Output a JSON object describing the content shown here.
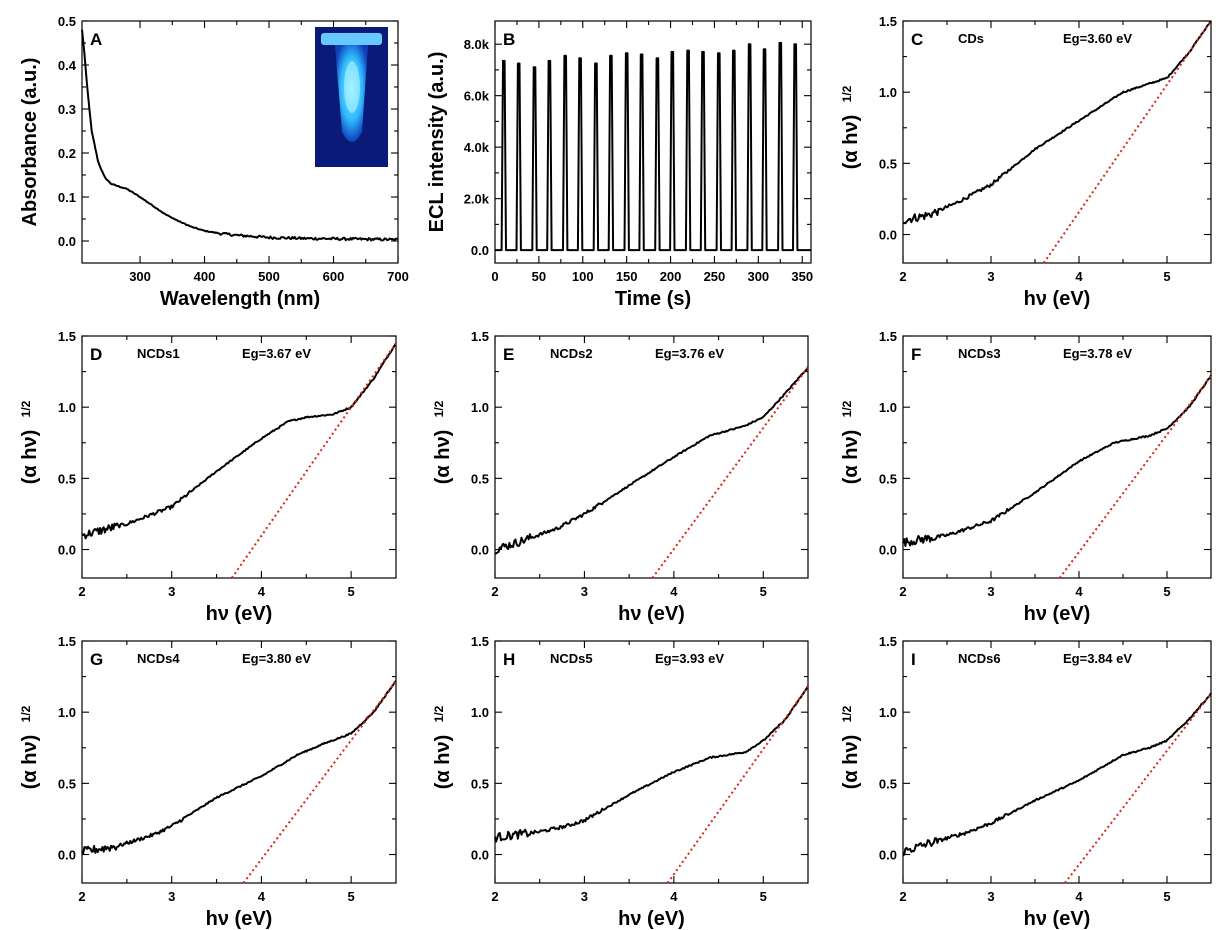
{
  "chart_data": [
    {
      "id": "A",
      "type": "line",
      "letter": "A",
      "xlabel": "Wavelength (nm)",
      "ylabel": "Absorbance (a.u.)",
      "xlim": [
        210,
        700
      ],
      "ylim": [
        -0.05,
        0.5
      ],
      "xticks": [
        300,
        400,
        500,
        600,
        700
      ],
      "xtick_labels": [
        "300",
        "400",
        "500",
        "600",
        "700"
      ],
      "yticks": [
        0,
        0.1,
        0.2,
        0.3,
        0.4,
        0.5
      ],
      "ytick_labels": [
        "0.0",
        "0.1",
        "0.2",
        "0.3",
        "0.4",
        "0.5"
      ],
      "series": [
        {
          "x": [
            210,
            213,
            218,
            225,
            235,
            245,
            255,
            265,
            280,
            300,
            320,
            340,
            360,
            380,
            400,
            425,
            450,
            500,
            550,
            600,
            650,
            700
          ],
          "y": [
            0.48,
            0.44,
            0.35,
            0.25,
            0.18,
            0.145,
            0.13,
            0.125,
            0.118,
            0.1,
            0.08,
            0.06,
            0.045,
            0.032,
            0.023,
            0.017,
            0.013,
            0.008,
            0.006,
            0.005,
            0.004,
            0.003
          ]
        }
      ],
      "inset": "photo of a centrifuge tube with blue fluorescence under UV light"
    },
    {
      "id": "B",
      "type": "line",
      "letter": "B",
      "xlabel": "Time (s)",
      "ylabel": "ECL intensity (a.u.)",
      "xlim": [
        0,
        360
      ],
      "ylim": [
        -500,
        8900
      ],
      "xticks": [
        0,
        50,
        100,
        150,
        200,
        250,
        300,
        350
      ],
      "xtick_labels": [
        "0",
        "50",
        "100",
        "150",
        "200",
        "250",
        "300",
        "350"
      ],
      "yticks": [
        0,
        2000,
        4000,
        6000,
        8000
      ],
      "ytick_labels": [
        "0.0",
        "2.0k",
        "4.0k",
        "6.0k",
        "8.0k"
      ],
      "peaks": {
        "x": [
          10,
          27,
          45,
          62,
          80,
          97,
          115,
          132,
          150,
          167,
          185,
          202,
          220,
          237,
          255,
          272,
          290,
          307,
          325,
          342
        ],
        "y": [
          7350,
          7250,
          7100,
          7350,
          7550,
          7450,
          7250,
          7550,
          7650,
          7600,
          7450,
          7700,
          7750,
          7700,
          7650,
          7750,
          8000,
          7800,
          8050,
          8000
        ]
      }
    },
    {
      "id": "C",
      "type": "line",
      "letter": "C",
      "sample": "CDs",
      "eg": "Eg=3.60 eV",
      "xlabel": "hν (eV)",
      "ylabel": "(α hν)",
      "xlim": [
        2,
        5.5
      ],
      "ylim": [
        -0.2,
        1.5
      ],
      "xticks": [
        2,
        3,
        4,
        5
      ],
      "xtick_labels": [
        "2",
        "3",
        "4",
        "5"
      ],
      "yticks": [
        0,
        0.5,
        1.0,
        1.5
      ],
      "ytick_labels": [
        "0.0",
        "0.5",
        "1.0",
        "1.5"
      ],
      "series": [
        {
          "x": [
            2,
            2.3,
            2.6,
            3.0,
            3.5,
            4.0,
            4.5,
            5.0,
            5.25,
            5.5
          ],
          "y": [
            0.1,
            0.14,
            0.22,
            0.35,
            0.6,
            0.8,
            1.0,
            1.1,
            1.28,
            1.5
          ]
        }
      ],
      "fit": {
        "x": [
          3.6,
          5.5
        ],
        "y": [
          -0.2,
          1.5
        ]
      }
    },
    {
      "id": "D",
      "type": "line",
      "letter": "D",
      "sample": "NCDs1",
      "eg": "Eg=3.67 eV",
      "xlabel": "hν (eV)",
      "ylabel": "(α hν)",
      "xlim": [
        2,
        5.5
      ],
      "ylim": [
        -0.2,
        1.5
      ],
      "xticks": [
        2,
        3,
        4,
        5
      ],
      "xtick_labels": [
        "2",
        "3",
        "4",
        "5"
      ],
      "yticks": [
        0,
        0.5,
        1.0,
        1.5
      ],
      "ytick_labels": [
        "0.0",
        "0.5",
        "1.0",
        "1.5"
      ],
      "series": [
        {
          "x": [
            2,
            2.5,
            3.0,
            3.5,
            4.0,
            4.3,
            4.5,
            4.8,
            5.0,
            5.25,
            5.5
          ],
          "y": [
            0.1,
            0.18,
            0.3,
            0.55,
            0.78,
            0.9,
            0.93,
            0.95,
            1.0,
            1.2,
            1.45
          ]
        }
      ],
      "fit": {
        "x": [
          3.67,
          5.5
        ],
        "y": [
          -0.2,
          1.45
        ]
      }
    },
    {
      "id": "E",
      "type": "line",
      "letter": "E",
      "sample": "NCDs2",
      "eg": "Eg=3.76 eV",
      "xlabel": "hν (eV)",
      "ylabel": "(α hν)",
      "xlim": [
        2,
        5.5
      ],
      "ylim": [
        -0.2,
        1.5
      ],
      "xticks": [
        2,
        3,
        4,
        5
      ],
      "xtick_labels": [
        "2",
        "3",
        "4",
        "5"
      ],
      "yticks": [
        0,
        0.5,
        1.0,
        1.5
      ],
      "ytick_labels": [
        "0.0",
        "0.5",
        "1.0",
        "1.5"
      ],
      "series": [
        {
          "x": [
            2,
            2.3,
            2.7,
            3.0,
            3.5,
            4.0,
            4.4,
            4.8,
            5.0,
            5.25,
            5.5
          ],
          "y": [
            0.0,
            0.06,
            0.15,
            0.25,
            0.45,
            0.65,
            0.8,
            0.87,
            0.93,
            1.1,
            1.28
          ]
        }
      ],
      "fit": {
        "x": [
          3.76,
          5.5
        ],
        "y": [
          -0.2,
          1.28
        ]
      }
    },
    {
      "id": "F",
      "type": "line",
      "letter": "F",
      "sample": "NCDs3",
      "eg": "Eg=3.78 eV",
      "xlabel": "hν (eV)",
      "ylabel": "(α hν)",
      "xlim": [
        2,
        5.5
      ],
      "ylim": [
        -0.2,
        1.5
      ],
      "xticks": [
        2,
        3,
        4,
        5
      ],
      "xtick_labels": [
        "2",
        "3",
        "4",
        "5"
      ],
      "yticks": [
        0,
        0.5,
        1.0,
        1.5
      ],
      "ytick_labels": [
        "0.0",
        "0.5",
        "1.0",
        "1.5"
      ],
      "series": [
        {
          "x": [
            2,
            2.5,
            3.0,
            3.5,
            4.0,
            4.4,
            4.8,
            5.0,
            5.25,
            5.5
          ],
          "y": [
            0.05,
            0.1,
            0.2,
            0.4,
            0.62,
            0.75,
            0.8,
            0.85,
            1.0,
            1.22
          ]
        }
      ],
      "fit": {
        "x": [
          3.78,
          5.5
        ],
        "y": [
          -0.2,
          1.22
        ]
      }
    },
    {
      "id": "G",
      "type": "line",
      "letter": "G",
      "sample": "NCDs4",
      "eg": "Eg=3.80 eV",
      "xlabel": "hν (eV)",
      "ylabel": "(α hν)",
      "xlim": [
        2,
        5.5
      ],
      "ylim": [
        -0.2,
        1.5
      ],
      "xticks": [
        2,
        3,
        4,
        5
      ],
      "xtick_labels": [
        "2",
        "3",
        "4",
        "5"
      ],
      "yticks": [
        0,
        0.5,
        1.0,
        1.5
      ],
      "ytick_labels": [
        "0.0",
        "0.5",
        "1.0",
        "1.5"
      ],
      "series": [
        {
          "x": [
            2,
            2.4,
            2.8,
            3.0,
            3.5,
            4.0,
            4.4,
            4.7,
            5.0,
            5.25,
            5.5
          ],
          "y": [
            0.02,
            0.06,
            0.14,
            0.2,
            0.4,
            0.55,
            0.7,
            0.78,
            0.85,
            1.0,
            1.22
          ]
        }
      ],
      "fit": {
        "x": [
          3.8,
          5.5
        ],
        "y": [
          -0.2,
          1.22
        ]
      }
    },
    {
      "id": "H",
      "type": "line",
      "letter": "H",
      "sample": "NCDs5",
      "eg": "Eg=3.93 eV",
      "xlabel": "hν (eV)",
      "ylabel": "(α hν)",
      "xlim": [
        2,
        5.5
      ],
      "ylim": [
        -0.2,
        1.5
      ],
      "xticks": [
        2,
        3,
        4,
        5
      ],
      "xtick_labels": [
        "2",
        "3",
        "4",
        "5"
      ],
      "yticks": [
        0,
        0.5,
        1.0,
        1.5
      ],
      "ytick_labels": [
        "0.0",
        "0.5",
        "1.0",
        "1.5"
      ],
      "series": [
        {
          "x": [
            2,
            2.5,
            2.8,
            3.0,
            3.5,
            4.0,
            4.4,
            4.8,
            5.0,
            5.25,
            5.5
          ],
          "y": [
            0.12,
            0.16,
            0.2,
            0.24,
            0.42,
            0.58,
            0.68,
            0.72,
            0.8,
            0.95,
            1.18
          ]
        }
      ],
      "fit": {
        "x": [
          3.93,
          5.5
        ],
        "y": [
          -0.2,
          1.18
        ]
      }
    },
    {
      "id": "I",
      "type": "line",
      "letter": "I",
      "sample": "NCDs6",
      "eg": "Eg=3.84 eV",
      "xlabel": "hν (eV)",
      "ylabel": "(α hν)",
      "xlim": [
        2,
        5.5
      ],
      "ylim": [
        -0.2,
        1.5
      ],
      "xticks": [
        2,
        3,
        4,
        5
      ],
      "xtick_labels": [
        "2",
        "3",
        "4",
        "5"
      ],
      "yticks": [
        0,
        0.5,
        1.0,
        1.5
      ],
      "ytick_labels": [
        "0.0",
        "0.5",
        "1.0",
        "1.5"
      ],
      "series": [
        {
          "x": [
            2,
            2.3,
            2.7,
            3.0,
            3.5,
            4.0,
            4.5,
            4.8,
            5.0,
            5.25,
            5.5
          ],
          "y": [
            0.02,
            0.08,
            0.15,
            0.22,
            0.38,
            0.52,
            0.7,
            0.75,
            0.8,
            0.95,
            1.13
          ]
        }
      ],
      "fit": {
        "x": [
          3.84,
          5.5
        ],
        "y": [
          -0.2,
          1.13
        ]
      }
    }
  ]
}
